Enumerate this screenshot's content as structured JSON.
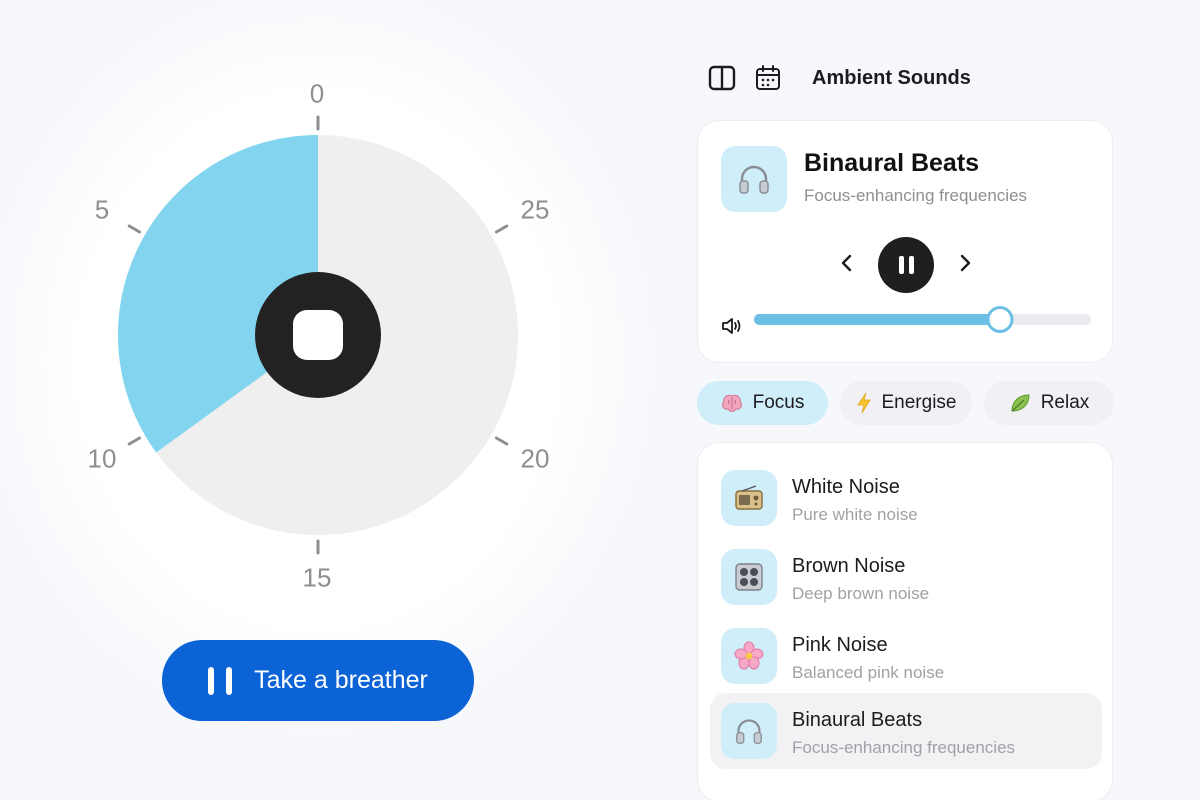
{
  "timer": {
    "tick_labels": [
      "0",
      "5",
      "10",
      "15",
      "20",
      "25"
    ],
    "elapsed_fraction": 0.35,
    "colors": {
      "elapsed": "#82d4ef",
      "remaining": "#efefef",
      "center": "#222222"
    },
    "stop_icon": "stop-icon",
    "breather_label": "Take a breather",
    "breather_icon": "pause-icon"
  },
  "topbar": {
    "sidebar_icon": "sidebar-toggle-icon",
    "calendar_icon": "calendar-icon",
    "title": "Ambient Sounds"
  },
  "player": {
    "title": "Binaural Beats",
    "subtitle": "Focus-enhancing frequencies",
    "art_icon": "headphones-icon",
    "volume_level": 0.73,
    "accent": "#6bc0e4"
  },
  "categories": [
    {
      "label": "Focus",
      "icon": "brain-icon",
      "active": true
    },
    {
      "label": "Energise",
      "icon": "lightning-icon",
      "active": false
    },
    {
      "label": "Relax",
      "icon": "leaf-icon",
      "active": false
    }
  ],
  "sounds": [
    {
      "title": "White Noise",
      "subtitle": "Pure white noise",
      "icon": "radio-icon",
      "selected": false
    },
    {
      "title": "Brown Noise",
      "subtitle": "Deep brown noise",
      "icon": "speaker-grid-icon",
      "selected": false
    },
    {
      "title": "Pink Noise",
      "subtitle": "Balanced pink noise",
      "icon": "flower-icon",
      "selected": false
    },
    {
      "title": "Binaural Beats",
      "subtitle": "Focus-enhancing frequencies",
      "icon": "headphones-icon",
      "selected": true
    }
  ]
}
